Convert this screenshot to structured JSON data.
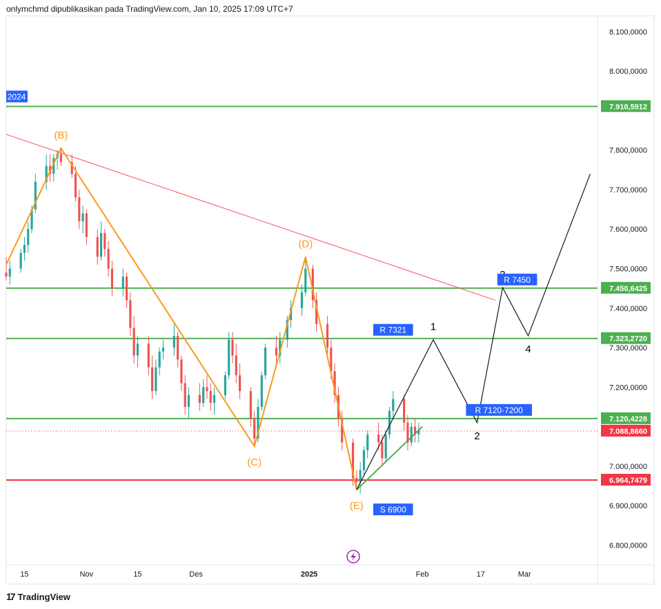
{
  "header": {
    "text": "onlymchmd dipublikasikan pada TradingView.com, Jan 10, 2025 17:09 UTC+7"
  },
  "footer": {
    "brand": "TradingView",
    "logo_icon": "tradingview-logo-icon"
  },
  "price_axis": {
    "ticks": [
      {
        "value": 8100000,
        "label": "8.100,0000"
      },
      {
        "value": 8000000,
        "label": "8.000,0000"
      },
      {
        "value": 7800000,
        "label": "7.800,0000"
      },
      {
        "value": 7700000,
        "label": "7.700,0000"
      },
      {
        "value": 7600000,
        "label": "7.600,0000"
      },
      {
        "value": 7500000,
        "label": "7.500,0000"
      },
      {
        "value": 7400000,
        "label": "7.400,0000"
      },
      {
        "value": 7300000,
        "label": "7.300,0000"
      },
      {
        "value": 7200000,
        "label": "7.200,0000"
      },
      {
        "value": 7000000,
        "label": "7.000,0000"
      },
      {
        "value": 6900000,
        "label": "6.900,0000"
      },
      {
        "value": 6800000,
        "label": "6.800,0000"
      }
    ]
  },
  "time_axis": {
    "ticks": [
      {
        "date": "2024-10-15",
        "label": "15",
        "bold": false
      },
      {
        "date": "2024-11-01",
        "label": "Nov",
        "bold": false
      },
      {
        "date": "2024-11-15",
        "label": "15",
        "bold": false
      },
      {
        "date": "2024-12-01",
        "label": "Des",
        "bold": false
      },
      {
        "date": "2025-01-01",
        "label": "2025",
        "bold": true
      },
      {
        "date": "2025-02-01",
        "label": "Feb",
        "bold": false
      },
      {
        "date": "2025-02-17",
        "label": "17",
        "bold": false
      },
      {
        "date": "2025-03-01",
        "label": "Mar",
        "bold": false
      }
    ]
  },
  "chart_data": {
    "type": "candlestick",
    "colors": {
      "up": "#26a69a",
      "down": "#ef5350",
      "level_green": "#4caf50",
      "level_red": "#f23645",
      "trendline": "#f7525f",
      "wave_orange": "#f89a1c",
      "projection": "#131722",
      "support_trend": "#4caf50",
      "label_blue": "#2962ff"
    },
    "ohlc": [
      {
        "t": "2024-10-10",
        "o": 7490000,
        "h": 7530000,
        "l": 7470000,
        "c": 7480000
      },
      {
        "t": "2024-10-11",
        "o": 7480000,
        "h": 7520000,
        "l": 7460000,
        "c": 7500000
      },
      {
        "t": "2024-10-14",
        "o": 7500000,
        "h": 7550000,
        "l": 7490000,
        "c": 7540000
      },
      {
        "t": "2024-10-15",
        "o": 7540000,
        "h": 7580000,
        "l": 7520000,
        "c": 7560000
      },
      {
        "t": "2024-10-16",
        "o": 7560000,
        "h": 7620000,
        "l": 7540000,
        "c": 7600000
      },
      {
        "t": "2024-10-17",
        "o": 7600000,
        "h": 7660000,
        "l": 7590000,
        "c": 7650000
      },
      {
        "t": "2024-10-18",
        "o": 7650000,
        "h": 7740000,
        "l": 7640000,
        "c": 7720000
      },
      {
        "t": "2024-10-21",
        "o": 7720000,
        "h": 7790000,
        "l": 7700000,
        "c": 7760000
      },
      {
        "t": "2024-10-22",
        "o": 7760000,
        "h": 7790000,
        "l": 7720000,
        "c": 7740000
      },
      {
        "t": "2024-10-23",
        "o": 7740000,
        "h": 7790000,
        "l": 7720000,
        "c": 7780000
      },
      {
        "t": "2024-10-24",
        "o": 7780000,
        "h": 7800000,
        "l": 7750000,
        "c": 7790000
      },
      {
        "t": "2024-10-25",
        "o": 7790000,
        "h": 7805000,
        "l": 7760000,
        "c": 7770000
      },
      {
        "t": "2024-10-28",
        "o": 7770000,
        "h": 7790000,
        "l": 7730000,
        "c": 7740000
      },
      {
        "t": "2024-10-29",
        "o": 7740000,
        "h": 7760000,
        "l": 7670000,
        "c": 7680000
      },
      {
        "t": "2024-10-30",
        "o": 7680000,
        "h": 7700000,
        "l": 7600000,
        "c": 7620000
      },
      {
        "t": "2024-10-31",
        "o": 7620000,
        "h": 7660000,
        "l": 7590000,
        "c": 7640000
      },
      {
        "t": "2024-11-01",
        "o": 7640000,
        "h": 7650000,
        "l": 7560000,
        "c": 7580000
      },
      {
        "t": "2024-11-04",
        "o": 7580000,
        "h": 7600000,
        "l": 7510000,
        "c": 7530000
      },
      {
        "t": "2024-11-05",
        "o": 7530000,
        "h": 7620000,
        "l": 7520000,
        "c": 7590000
      },
      {
        "t": "2024-11-06",
        "o": 7590000,
        "h": 7600000,
        "l": 7530000,
        "c": 7550000
      },
      {
        "t": "2024-11-07",
        "o": 7550000,
        "h": 7570000,
        "l": 7480000,
        "c": 7500000
      },
      {
        "t": "2024-11-08",
        "o": 7500000,
        "h": 7520000,
        "l": 7430000,
        "c": 7450000
      },
      {
        "t": "2024-11-11",
        "o": 7450000,
        "h": 7500000,
        "l": 7430000,
        "c": 7480000
      },
      {
        "t": "2024-11-12",
        "o": 7480000,
        "h": 7490000,
        "l": 7400000,
        "c": 7420000
      },
      {
        "t": "2024-11-13",
        "o": 7420000,
        "h": 7440000,
        "l": 7330000,
        "c": 7350000
      },
      {
        "t": "2024-11-14",
        "o": 7350000,
        "h": 7380000,
        "l": 7260000,
        "c": 7280000
      },
      {
        "t": "2024-11-15",
        "o": 7280000,
        "h": 7330000,
        "l": 7250000,
        "c": 7310000
      },
      {
        "t": "2024-11-18",
        "o": 7310000,
        "h": 7330000,
        "l": 7230000,
        "c": 7250000
      },
      {
        "t": "2024-11-19",
        "o": 7250000,
        "h": 7280000,
        "l": 7170000,
        "c": 7190000
      },
      {
        "t": "2024-11-20",
        "o": 7190000,
        "h": 7270000,
        "l": 7180000,
        "c": 7250000
      },
      {
        "t": "2024-11-21",
        "o": 7250000,
        "h": 7300000,
        "l": 7230000,
        "c": 7290000
      },
      {
        "t": "2024-11-22",
        "o": 7290000,
        "h": 7320000,
        "l": 7270000,
        "c": 7300000
      },
      {
        "t": "2024-11-25",
        "o": 7300000,
        "h": 7360000,
        "l": 7280000,
        "c": 7330000
      },
      {
        "t": "2024-11-26",
        "o": 7330000,
        "h": 7340000,
        "l": 7250000,
        "c": 7270000
      },
      {
        "t": "2024-11-27",
        "o": 7270000,
        "h": 7280000,
        "l": 7190000,
        "c": 7210000
      },
      {
        "t": "2024-11-28",
        "o": 7210000,
        "h": 7230000,
        "l": 7130000,
        "c": 7150000
      },
      {
        "t": "2024-11-29",
        "o": 7150000,
        "h": 7200000,
        "l": 7120000,
        "c": 7180000
      },
      {
        "t": "2024-12-02",
        "o": 7180000,
        "h": 7210000,
        "l": 7140000,
        "c": 7160000
      },
      {
        "t": "2024-12-03",
        "o": 7160000,
        "h": 7220000,
        "l": 7150000,
        "c": 7200000
      },
      {
        "t": "2024-12-04",
        "o": 7200000,
        "h": 7230000,
        "l": 7170000,
        "c": 7190000
      },
      {
        "t": "2024-12-05",
        "o": 7190000,
        "h": 7210000,
        "l": 7140000,
        "c": 7160000
      },
      {
        "t": "2024-12-06",
        "o": 7160000,
        "h": 7200000,
        "l": 7130000,
        "c": 7180000
      },
      {
        "t": "2024-12-09",
        "o": 7180000,
        "h": 7240000,
        "l": 7170000,
        "c": 7230000
      },
      {
        "t": "2024-12-10",
        "o": 7230000,
        "h": 7340000,
        "l": 7220000,
        "c": 7320000
      },
      {
        "t": "2024-12-11",
        "o": 7320000,
        "h": 7340000,
        "l": 7260000,
        "c": 7280000
      },
      {
        "t": "2024-12-12",
        "o": 7280000,
        "h": 7310000,
        "l": 7210000,
        "c": 7230000
      },
      {
        "t": "2024-12-13",
        "o": 7230000,
        "h": 7260000,
        "l": 7170000,
        "c": 7190000
      },
      {
        "t": "2024-12-16",
        "o": 7190000,
        "h": 7200000,
        "l": 7100000,
        "c": 7120000
      },
      {
        "t": "2024-12-17",
        "o": 7120000,
        "h": 7140000,
        "l": 7050000,
        "c": 7070000
      },
      {
        "t": "2024-12-18",
        "o": 7070000,
        "h": 7170000,
        "l": 7060000,
        "c": 7150000
      },
      {
        "t": "2024-12-19",
        "o": 7150000,
        "h": 7240000,
        "l": 7140000,
        "c": 7230000
      },
      {
        "t": "2024-12-20",
        "o": 7230000,
        "h": 7310000,
        "l": 7220000,
        "c": 7300000
      },
      {
        "t": "2024-12-23",
        "o": 7300000,
        "h": 7330000,
        "l": 7260000,
        "c": 7280000
      },
      {
        "t": "2024-12-24",
        "o": 7280000,
        "h": 7340000,
        "l": 7260000,
        "c": 7320000
      },
      {
        "t": "2024-12-26",
        "o": 7320000,
        "h": 7380000,
        "l": 7300000,
        "c": 7370000
      },
      {
        "t": "2024-12-27",
        "o": 7370000,
        "h": 7420000,
        "l": 7350000,
        "c": 7400000
      },
      {
        "t": "2024-12-30",
        "o": 7400000,
        "h": 7460000,
        "l": 7380000,
        "c": 7440000
      },
      {
        "t": "2024-12-31",
        "o": 7440000,
        "h": 7530000,
        "l": 7430000,
        "c": 7500000
      },
      {
        "t": "2025-01-02",
        "o": 7500000,
        "h": 7510000,
        "l": 7400000,
        "c": 7420000
      },
      {
        "t": "2025-01-03",
        "o": 7420000,
        "h": 7440000,
        "l": 7340000,
        "c": 7360000
      },
      {
        "t": "2025-01-06",
        "o": 7360000,
        "h": 7380000,
        "l": 7280000,
        "c": 7300000
      },
      {
        "t": "2025-01-07",
        "o": 7300000,
        "h": 7320000,
        "l": 7220000,
        "c": 7240000
      },
      {
        "t": "2025-01-08",
        "o": 7240000,
        "h": 7260000,
        "l": 7160000,
        "c": 7180000
      },
      {
        "t": "2025-01-09",
        "o": 7180000,
        "h": 7200000,
        "l": 7100000,
        "c": 7120000
      },
      {
        "t": "2025-01-10",
        "o": 7120000,
        "h": 7140000,
        "l": 7040000,
        "c": 7060000
      },
      {
        "t": "2025-01-13",
        "o": 7060000,
        "h": 7070000,
        "l": 6950000,
        "c": 6970000
      },
      {
        "t": "2025-01-14",
        "o": 6970000,
        "h": 6990000,
        "l": 6940000,
        "c": 6960000
      },
      {
        "t": "2025-01-15",
        "o": 6960000,
        "h": 7010000,
        "l": 6930000,
        "c": 6990000
      },
      {
        "t": "2025-01-16",
        "o": 6990000,
        "h": 7050000,
        "l": 6980000,
        "c": 7040000
      },
      {
        "t": "2025-01-17",
        "o": 7040000,
        "h": 7090000,
        "l": 7020000,
        "c": 7080000
      },
      {
        "t": "2025-01-20",
        "o": 7080000,
        "h": 7110000,
        "l": 7040000,
        "c": 7060000
      },
      {
        "t": "2025-01-21",
        "o": 7060000,
        "h": 7080000,
        "l": 7000000,
        "c": 7020000
      },
      {
        "t": "2025-01-22",
        "o": 7020000,
        "h": 7090000,
        "l": 7010000,
        "c": 7080000
      },
      {
        "t": "2025-01-23",
        "o": 7080000,
        "h": 7150000,
        "l": 7070000,
        "c": 7140000
      },
      {
        "t": "2025-01-24",
        "o": 7140000,
        "h": 7190000,
        "l": 7120000,
        "c": 7170000
      },
      {
        "t": "2025-01-27",
        "o": 7170000,
        "h": 7180000,
        "l": 7090000,
        "c": 7110000
      },
      {
        "t": "2025-01-28",
        "o": 7110000,
        "h": 7130000,
        "l": 7040000,
        "c": 7060000
      },
      {
        "t": "2025-01-29",
        "o": 7060000,
        "h": 7110000,
        "l": 7050000,
        "c": 7100000
      },
      {
        "t": "2025-01-30",
        "o": 7100000,
        "h": 7120000,
        "l": 7060000,
        "c": 7080000
      },
      {
        "t": "2025-01-31",
        "o": 7080000,
        "h": 7110000,
        "l": 7060000,
        "c": 7090000
      }
    ],
    "levels": [
      {
        "value": 7910591.2,
        "label": "7.910,5912",
        "color": "#4caf50"
      },
      {
        "value": 7450642.5,
        "label": "7.450,6425",
        "color": "#4caf50"
      },
      {
        "value": 7323272.0,
        "label": "7.323,2720",
        "color": "#4caf50"
      },
      {
        "value": 7120422.8,
        "label": "7.120,4228",
        "color": "#4caf50"
      },
      {
        "value": 6964747.9,
        "label": "6.964,7479",
        "color": "#f23645"
      }
    ],
    "current_price": {
      "value": 7088866.0,
      "label": "7.088,8660",
      "color": "#f23645"
    },
    "year_tag": {
      "label": "2024",
      "value": 7910591.2
    },
    "resistance_trendline": [
      {
        "t": "2024-10-10",
        "v": 7840000
      },
      {
        "t": "2025-02-21",
        "v": 7420000
      }
    ],
    "support_trendline": [
      {
        "t": "2025-01-14",
        "v": 6940000
      },
      {
        "t": "2025-02-01",
        "v": 7100000
      }
    ],
    "wave_labels": [
      {
        "label": "(B)",
        "t": "2024-10-25",
        "v": 7805000
      },
      {
        "label": "(C)",
        "t": "2024-12-17",
        "v": 7050000
      },
      {
        "label": "(D)",
        "t": "2024-12-31",
        "v": 7530000
      },
      {
        "label": "(E)",
        "t": "2025-01-14",
        "v": 6940000
      }
    ],
    "wave_path": [
      {
        "t": "2024-10-10",
        "v": 7510000
      },
      {
        "t": "2024-10-25",
        "v": 7805000
      },
      {
        "t": "2024-12-17",
        "v": 7050000
      },
      {
        "t": "2024-12-31",
        "v": 7530000
      },
      {
        "t": "2025-01-14",
        "v": 6940000
      }
    ],
    "projection_path": [
      {
        "t": "2025-01-14",
        "v": 6940000
      },
      {
        "t": "2025-02-04",
        "v": 7320000
      },
      {
        "t": "2025-02-16",
        "v": 7110000
      },
      {
        "t": "2025-02-23",
        "v": 7452000
      },
      {
        "t": "2025-03-02",
        "v": 7330000
      },
      {
        "t": "2025-03-19",
        "v": 7740000
      }
    ],
    "projection_labels": [
      {
        "label": "1",
        "t": "2025-02-04",
        "v": 7320000,
        "pos": "above"
      },
      {
        "label": "2",
        "t": "2025-02-16",
        "v": 7110000,
        "pos": "below"
      },
      {
        "label": "3",
        "t": "2025-02-23",
        "v": 7452000,
        "pos": "above"
      },
      {
        "label": "4",
        "t": "2025-03-02",
        "v": 7330000,
        "pos": "below"
      }
    ],
    "zone_labels": [
      {
        "label": "R 7450",
        "t": "2025-02-27",
        "v": 7450642.5
      },
      {
        "label": "R 7321",
        "t": "2025-01-24",
        "v": 7323272.0
      },
      {
        "label": "R 7120-7200",
        "t": "2025-02-22",
        "v": 7120422.8
      },
      {
        "label": "S 6900",
        "t": "2025-01-24",
        "v": 6900000
      }
    ],
    "scale": {
      "log": false,
      "ymin": 6750000,
      "ymax": 8140000,
      "xmin": "2024-10-10",
      "xmax": "2025-03-21"
    }
  }
}
